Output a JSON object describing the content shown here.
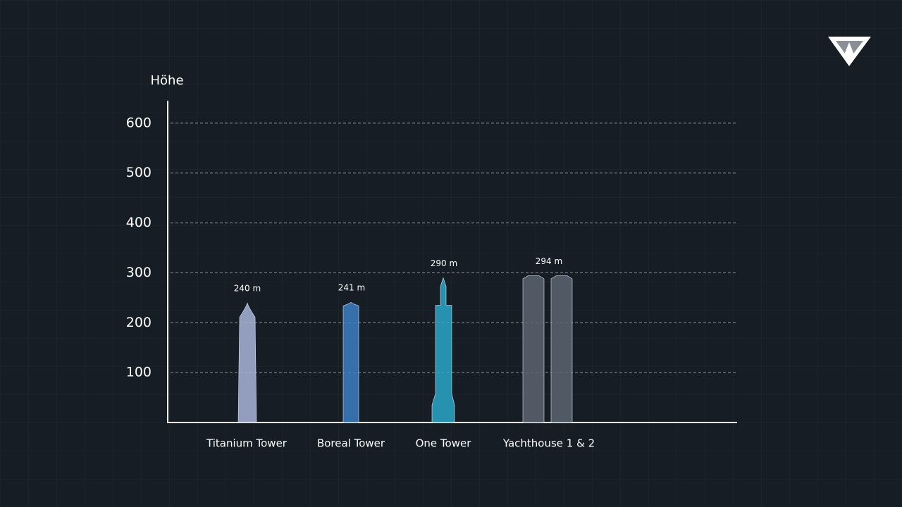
{
  "chart_data": {
    "type": "bar",
    "y_label": "Höhe",
    "categories": [
      "Titanium Tower",
      "Boreal Tower",
      "One Tower",
      "Yachthouse 1 & 2"
    ],
    "values": [
      240,
      241,
      290,
      294
    ],
    "value_labels": [
      "240 m",
      "241 m",
      "290 m",
      "294 m"
    ],
    "colors": [
      "#a9b4d8",
      "#3b7fc4",
      "#2aa7c9",
      "#5a6470"
    ],
    "ylim": [
      0,
      645
    ],
    "yticks": [
      100,
      200,
      300,
      400,
      500,
      600
    ],
    "grid": true
  }
}
